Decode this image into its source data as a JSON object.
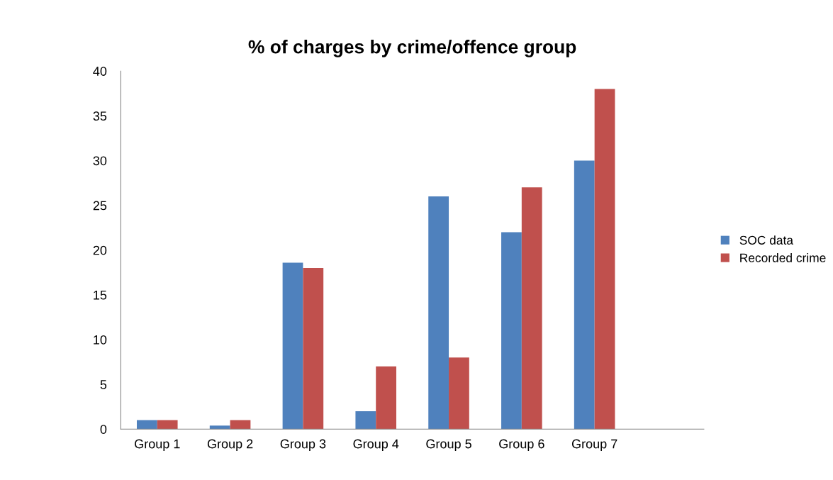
{
  "chart_data": {
    "type": "bar",
    "title": "% of charges by crime/offence group",
    "categories": [
      "Group 1",
      "Group 2",
      "Group 3",
      "Group 4",
      "Group 5",
      "Group 6",
      "Group 7",
      null
    ],
    "series": [
      {
        "name": "SOC data",
        "color": "#4f81bd",
        "values": [
          1,
          0.4,
          18.6,
          2,
          26,
          22,
          30,
          null
        ]
      },
      {
        "name": "Recorded crime",
        "color": "#c0504d",
        "values": [
          1,
          1,
          18,
          7,
          8,
          27,
          38,
          null
        ]
      }
    ],
    "ylim": [
      0,
      40
    ],
    "yticks": [
      0,
      5,
      10,
      15,
      20,
      25,
      30,
      35,
      40
    ],
    "grid": false,
    "legend": "right"
  }
}
